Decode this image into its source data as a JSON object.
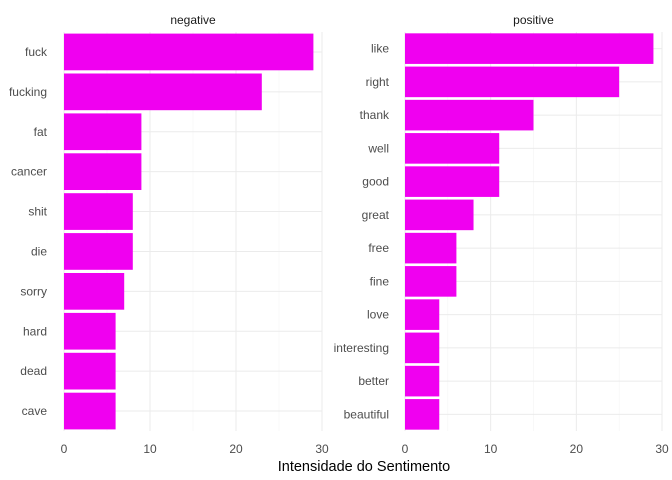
{
  "chart_data": {
    "type": "bar",
    "orientation": "horizontal",
    "xlabel": "Intensidade do Sentimento",
    "ylabel": "",
    "grid": true,
    "legend": "none",
    "bar_color": "#f000f0",
    "panels": [
      {
        "name": "negative",
        "categories": [
          "fuck",
          "fucking",
          "fat",
          "cancer",
          "shit",
          "die",
          "sorry",
          "hard",
          "dead",
          "cave"
        ],
        "values": [
          29,
          23,
          9,
          9,
          8,
          8,
          7,
          6,
          6,
          6
        ],
        "xlim": [
          0,
          30
        ],
        "xticks": [
          0,
          10,
          20,
          30
        ]
      },
      {
        "name": "positive",
        "categories": [
          "like",
          "right",
          "thank",
          "well",
          "good",
          "great",
          "free",
          "fine",
          "love",
          "interesting",
          "better",
          "beautiful"
        ],
        "values": [
          29,
          25,
          15,
          11,
          11,
          8,
          6,
          6,
          4,
          4,
          4,
          4
        ],
        "xlim": [
          0,
          30
        ],
        "xticks": [
          0,
          10,
          20,
          30
        ]
      }
    ]
  }
}
